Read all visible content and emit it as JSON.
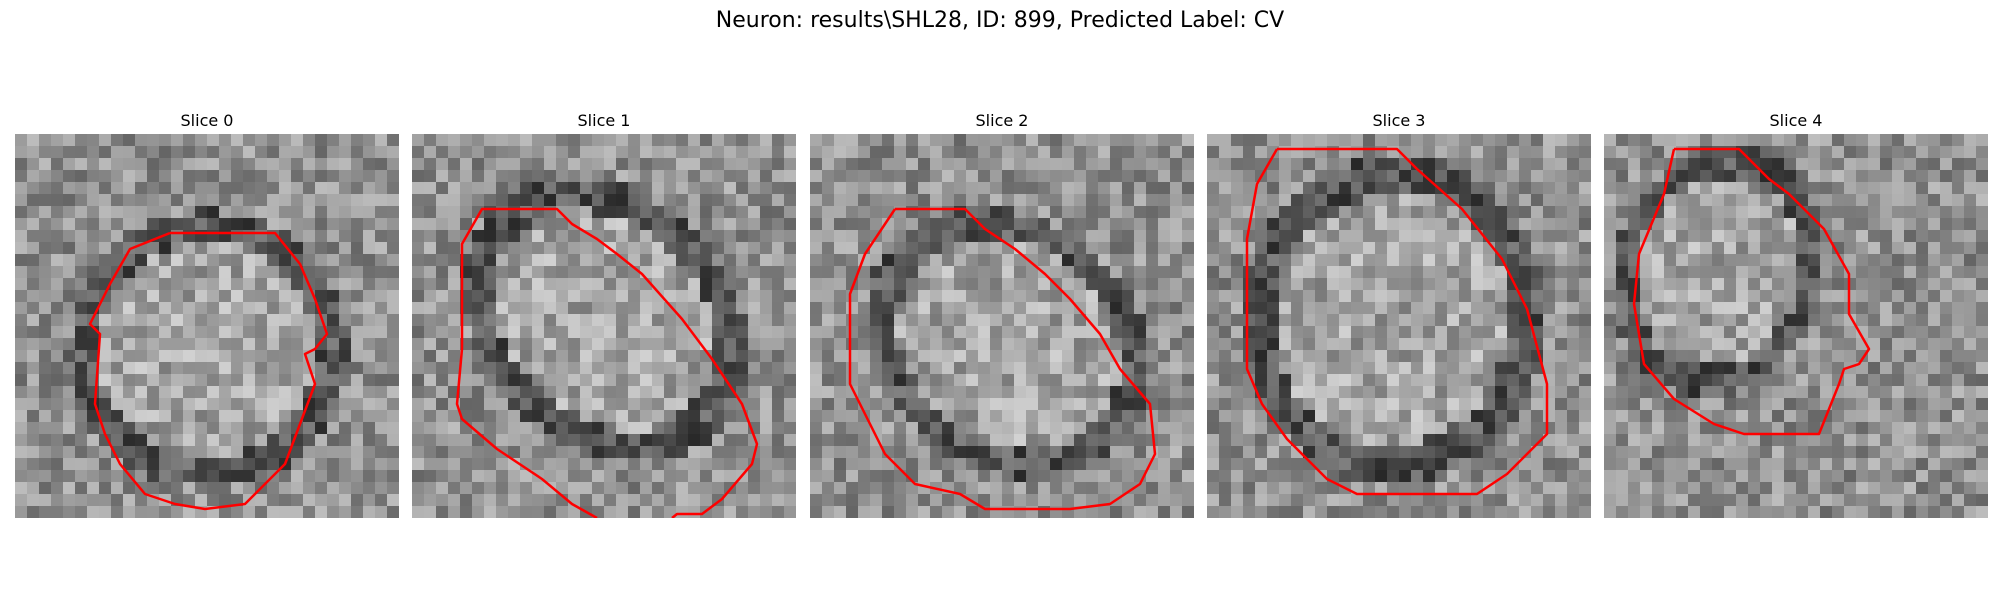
{
  "figure": {
    "title": "Neuron: results\\SHL28, ID: 899, Predicted Label: CV"
  },
  "colors": {
    "contour": "#ff0000",
    "background": "#ffffff"
  },
  "slices": [
    {
      "title": "Slice 0"
    },
    {
      "title": "Slice 1"
    },
    {
      "title": "Slice 2"
    },
    {
      "title": "Slice 3"
    },
    {
      "title": "Slice 4"
    }
  ]
}
